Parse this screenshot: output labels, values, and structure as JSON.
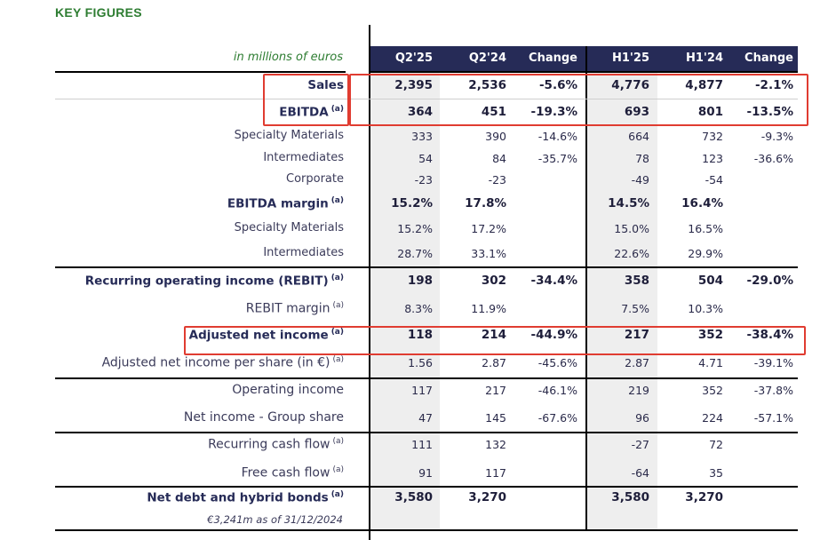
{
  "title": "KEY FIGURES",
  "unit_label": "in millions of euros",
  "columns": [
    "Q2'25",
    "Q2'24",
    "Change",
    "H1'25",
    "H1'24",
    "Change"
  ],
  "rows": [
    {
      "label": "Sales",
      "note": "",
      "values": [
        "2,395",
        "2,536",
        "-5.6%",
        "4,776",
        "4,877",
        "-2.1%"
      ]
    },
    {
      "label": "EBITDA",
      "note": "(a)",
      "values": [
        "364",
        "451",
        "-19.3%",
        "693",
        "801",
        "-13.5%"
      ]
    },
    {
      "label": "Specialty Materials",
      "note": "",
      "values": [
        "333",
        "390",
        "-14.6%",
        "664",
        "732",
        "-9.3%"
      ]
    },
    {
      "label": "Intermediates",
      "note": "",
      "values": [
        "54",
        "84",
        "-35.7%",
        "78",
        "123",
        "-36.6%"
      ]
    },
    {
      "label": "Corporate",
      "note": "",
      "values": [
        "-23",
        "-23",
        "",
        "-49",
        "-54",
        ""
      ]
    },
    {
      "label": "EBITDA margin",
      "note": "(a)",
      "values": [
        "15.2%",
        "17.8%",
        "",
        "14.5%",
        "16.4%",
        ""
      ]
    },
    {
      "label": "Specialty Materials",
      "note": "",
      "values": [
        "15.2%",
        "17.2%",
        "",
        "15.0%",
        "16.5%",
        ""
      ]
    },
    {
      "label": "Intermediates",
      "note": "",
      "values": [
        "28.7%",
        "33.1%",
        "",
        "22.6%",
        "29.9%",
        ""
      ]
    },
    {
      "label": "Recurring operating income (REBIT)",
      "note": "(a)",
      "values": [
        "198",
        "302",
        "-34.4%",
        "358",
        "504",
        "-29.0%"
      ]
    },
    {
      "label": "REBIT margin",
      "note": "(a)",
      "values": [
        "8.3%",
        "11.9%",
        "",
        "7.5%",
        "10.3%",
        ""
      ]
    },
    {
      "label": "Adjusted net income",
      "note": "(a)",
      "values": [
        "118",
        "214",
        "-44.9%",
        "217",
        "352",
        "-38.4%"
      ]
    },
    {
      "label": "Adjusted net income per share (in €)",
      "note": "(a)",
      "values": [
        "1.56",
        "2.87",
        "-45.6%",
        "2.87",
        "4.71",
        "-39.1%"
      ]
    },
    {
      "label": "Operating income",
      "note": "",
      "values": [
        "117",
        "217",
        "-46.1%",
        "219",
        "352",
        "-37.8%"
      ]
    },
    {
      "label": "Net income - Group share",
      "note": "",
      "values": [
        "47",
        "145",
        "-67.6%",
        "96",
        "224",
        "-57.1%"
      ]
    },
    {
      "label": "Recurring cash flow",
      "note": "(a)",
      "values": [
        "111",
        "132",
        "",
        "-27",
        "72",
        ""
      ]
    },
    {
      "label": "Free cash flow",
      "note": "(a)",
      "values": [
        "91",
        "117",
        "",
        "-64",
        "35",
        ""
      ]
    },
    {
      "label": "Net debt and hybrid bonds",
      "note": "(a)",
      "values": [
        "3,580",
        "3,270",
        "",
        "3,580",
        "3,270",
        ""
      ]
    }
  ],
  "footnote": "€3,241m as of 31/12/2024",
  "colors": {
    "accent_green": "#2e7d32",
    "header_navy": "#262b57",
    "highlight_red": "#e03c31",
    "shade": "#eeeeee"
  }
}
